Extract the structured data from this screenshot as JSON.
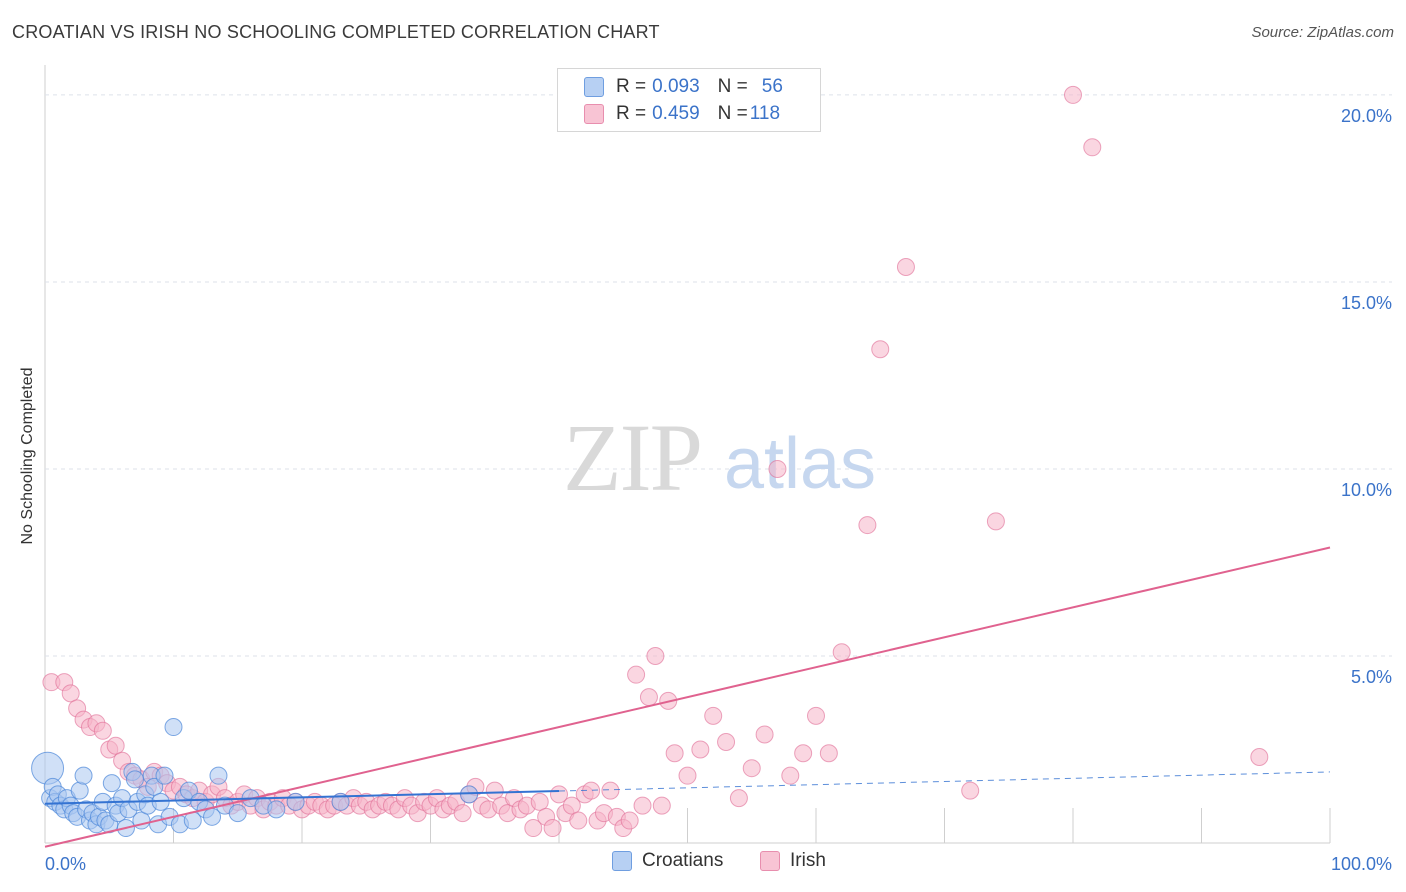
{
  "header": {
    "title": "CROATIAN VS IRISH NO SCHOOLING COMPLETED CORRELATION CHART",
    "source": "Source: ZipAtlas.com"
  },
  "watermark": {
    "zip": "ZIP",
    "atlas": "atlas"
  },
  "legend": {
    "rows": [
      {
        "r_label": "R =",
        "r_value": "0.093",
        "n_label": "N =",
        "n_value": "56"
      },
      {
        "r_label": "R =",
        "r_value": "0.459",
        "n_label": "N =",
        "n_value": "118"
      }
    ]
  },
  "bottom_legend": {
    "croatians": "Croatians",
    "irish": "Irish"
  },
  "colors": {
    "croatians_fill": "#a9c7f0",
    "croatians_stroke": "#4a86d8",
    "croatians_line": "#3473d2",
    "irish_fill": "#f6b5c9",
    "irish_stroke": "#e06b95",
    "irish_line": "#e0628f",
    "grid": "#dde2ea",
    "tick_label": "#3b73c9"
  },
  "chart_data": {
    "type": "scatter",
    "title": "CROATIAN VS IRISH NO SCHOOLING COMPLETED CORRELATION CHART",
    "xlabel": "",
    "ylabel": "No Schooling Completed",
    "xlim": [
      0,
      100
    ],
    "ylim": [
      0,
      20.8
    ],
    "x_tick_labels": [
      "0.0%",
      "100.0%"
    ],
    "y_ticks": [
      5,
      10,
      15,
      20
    ],
    "y_tick_labels": [
      "5.0%",
      "10.0%",
      "15.0%",
      "20.0%"
    ],
    "grid": true,
    "series": [
      {
        "name": "Croatians",
        "R": 0.093,
        "N": 56,
        "trendline": {
          "x0": 0,
          "y0": 1.05,
          "x1": 100,
          "y1": 1.9,
          "solid_until": 40
        },
        "points": [
          [
            0.2,
            2.0
          ],
          [
            0.4,
            1.2
          ],
          [
            0.6,
            1.5
          ],
          [
            0.8,
            1.1
          ],
          [
            1.0,
            1.3
          ],
          [
            1.2,
            1.0
          ],
          [
            1.5,
            0.9
          ],
          [
            1.7,
            1.2
          ],
          [
            2.0,
            1.0
          ],
          [
            2.2,
            0.8
          ],
          [
            2.5,
            0.7
          ],
          [
            2.7,
            1.4
          ],
          [
            3.0,
            1.8
          ],
          [
            3.2,
            0.9
          ],
          [
            3.5,
            0.6
          ],
          [
            3.7,
            0.8
          ],
          [
            4.0,
            0.5
          ],
          [
            4.2,
            0.7
          ],
          [
            4.5,
            1.1
          ],
          [
            4.7,
            0.6
          ],
          [
            5.0,
            0.5
          ],
          [
            5.2,
            1.6
          ],
          [
            5.5,
            1.0
          ],
          [
            5.7,
            0.8
          ],
          [
            6.0,
            1.2
          ],
          [
            6.3,
            0.4
          ],
          [
            6.5,
            0.9
          ],
          [
            6.8,
            1.9
          ],
          [
            7.0,
            1.7
          ],
          [
            7.2,
            1.1
          ],
          [
            7.5,
            0.6
          ],
          [
            7.8,
            1.3
          ],
          [
            8.0,
            1.0
          ],
          [
            8.3,
            1.8
          ],
          [
            8.5,
            1.5
          ],
          [
            8.8,
            0.5
          ],
          [
            9.0,
            1.1
          ],
          [
            9.3,
            1.8
          ],
          [
            9.7,
            0.7
          ],
          [
            10.0,
            3.1
          ],
          [
            10.5,
            0.5
          ],
          [
            10.8,
            1.2
          ],
          [
            11.2,
            1.4
          ],
          [
            11.5,
            0.6
          ],
          [
            12.0,
            1.1
          ],
          [
            12.5,
            0.9
          ],
          [
            13.0,
            0.7
          ],
          [
            13.5,
            1.8
          ],
          [
            14.0,
            1.0
          ],
          [
            15.0,
            0.8
          ],
          [
            16.0,
            1.2
          ],
          [
            17.0,
            1.0
          ],
          [
            18.0,
            0.9
          ],
          [
            19.5,
            1.1
          ],
          [
            23.0,
            1.1
          ],
          [
            33.0,
            1.3
          ]
        ]
      },
      {
        "name": "Irish",
        "R": 0.459,
        "N": 118,
        "trendline": {
          "x0": 0,
          "y0": -0.1,
          "x1": 100,
          "y1": 7.9
        },
        "points": [
          [
            0.5,
            4.3
          ],
          [
            1.5,
            4.3
          ],
          [
            2.0,
            4.0
          ],
          [
            2.5,
            3.6
          ],
          [
            3.0,
            3.3
          ],
          [
            3.5,
            3.1
          ],
          [
            4.0,
            3.2
          ],
          [
            4.5,
            3.0
          ],
          [
            5.0,
            2.5
          ],
          [
            5.5,
            2.6
          ],
          [
            6.0,
            2.2
          ],
          [
            6.5,
            1.9
          ],
          [
            7.0,
            1.8
          ],
          [
            7.5,
            1.7
          ],
          [
            8.0,
            1.5
          ],
          [
            8.5,
            1.9
          ],
          [
            9.0,
            1.8
          ],
          [
            9.5,
            1.6
          ],
          [
            10.0,
            1.4
          ],
          [
            10.5,
            1.5
          ],
          [
            11.0,
            1.3
          ],
          [
            11.5,
            1.2
          ],
          [
            12.0,
            1.4
          ],
          [
            12.5,
            1.1
          ],
          [
            13.0,
            1.3
          ],
          [
            13.5,
            1.5
          ],
          [
            14.0,
            1.2
          ],
          [
            14.5,
            1.0
          ],
          [
            15.0,
            1.1
          ],
          [
            15.5,
            1.3
          ],
          [
            16.0,
            1.0
          ],
          [
            16.5,
            1.2
          ],
          [
            17.0,
            0.9
          ],
          [
            17.5,
            1.1
          ],
          [
            18.0,
            1.0
          ],
          [
            18.5,
            1.2
          ],
          [
            19.0,
            1.0
          ],
          [
            19.5,
            1.1
          ],
          [
            20.0,
            0.9
          ],
          [
            20.5,
            1.0
          ],
          [
            21.0,
            1.1
          ],
          [
            21.5,
            1.0
          ],
          [
            22.0,
            0.9
          ],
          [
            22.5,
            1.0
          ],
          [
            23.0,
            1.1
          ],
          [
            23.5,
            1.0
          ],
          [
            24.0,
            1.2
          ],
          [
            24.5,
            1.0
          ],
          [
            25.0,
            1.1
          ],
          [
            25.5,
            0.9
          ],
          [
            26.0,
            1.0
          ],
          [
            26.5,
            1.1
          ],
          [
            27.0,
            1.0
          ],
          [
            27.5,
            0.9
          ],
          [
            28.0,
            1.2
          ],
          [
            28.5,
            1.0
          ],
          [
            29.0,
            0.8
          ],
          [
            29.5,
            1.1
          ],
          [
            30.0,
            1.0
          ],
          [
            30.5,
            1.2
          ],
          [
            31.0,
            0.9
          ],
          [
            31.5,
            1.0
          ],
          [
            32.0,
            1.1
          ],
          [
            32.5,
            0.8
          ],
          [
            33.0,
            1.3
          ],
          [
            33.5,
            1.5
          ],
          [
            34.0,
            1.0
          ],
          [
            34.5,
            0.9
          ],
          [
            35.0,
            1.4
          ],
          [
            35.5,
            1.0
          ],
          [
            36.0,
            0.8
          ],
          [
            36.5,
            1.2
          ],
          [
            37.0,
            0.9
          ],
          [
            37.5,
            1.0
          ],
          [
            38.0,
            0.4
          ],
          [
            38.5,
            1.1
          ],
          [
            39.0,
            0.7
          ],
          [
            39.5,
            0.4
          ],
          [
            40.0,
            1.3
          ],
          [
            40.5,
            0.8
          ],
          [
            41.0,
            1.0
          ],
          [
            41.5,
            0.6
          ],
          [
            42.0,
            1.3
          ],
          [
            42.5,
            1.4
          ],
          [
            43.0,
            0.6
          ],
          [
            43.5,
            0.8
          ],
          [
            44.0,
            1.4
          ],
          [
            44.5,
            0.7
          ],
          [
            45.0,
            0.4
          ],
          [
            45.5,
            0.6
          ],
          [
            46.0,
            4.5
          ],
          [
            46.5,
            1.0
          ],
          [
            47.0,
            3.9
          ],
          [
            47.5,
            5.0
          ],
          [
            48.0,
            1.0
          ],
          [
            48.5,
            3.8
          ],
          [
            49.0,
            2.4
          ],
          [
            50.0,
            1.8
          ],
          [
            51.0,
            2.5
          ],
          [
            52.0,
            3.4
          ],
          [
            53.0,
            2.7
          ],
          [
            54.0,
            1.2
          ],
          [
            55.0,
            2.0
          ],
          [
            56.0,
            2.9
          ],
          [
            57.0,
            10.0
          ],
          [
            58.0,
            1.8
          ],
          [
            59.0,
            2.4
          ],
          [
            60.0,
            3.4
          ],
          [
            61.0,
            2.4
          ],
          [
            62.0,
            5.1
          ],
          [
            64.0,
            8.5
          ],
          [
            65.0,
            13.2
          ],
          [
            67.0,
            15.4
          ],
          [
            72.0,
            1.4
          ],
          [
            74.0,
            8.6
          ],
          [
            80.0,
            20.0
          ],
          [
            81.5,
            18.6
          ],
          [
            94.5,
            2.3
          ]
        ]
      }
    ]
  }
}
